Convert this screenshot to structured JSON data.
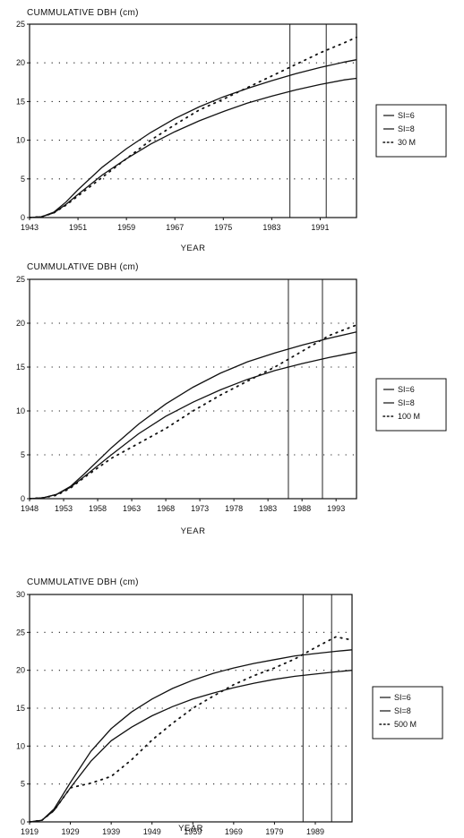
{
  "chart_data": [
    {
      "type": "line",
      "title": "CUMMULATIVE DBH (cm)",
      "xlabel": "YEAR",
      "ylabel": "",
      "xlim": [
        1943,
        1997
      ],
      "ylim": [
        0,
        25
      ],
      "xticks": [
        "1943",
        "1951",
        "1959",
        "1967",
        "1975",
        "1983",
        "1991"
      ],
      "yticks": [
        "0",
        "5",
        "10",
        "15",
        "20",
        "25"
      ],
      "grid": "dotted horizontal",
      "legend_position": "right",
      "vlines": [
        1986,
        1992
      ],
      "series": [
        {
          "name": "SI=6",
          "style": "solid",
          "x": [
            1943,
            1945,
            1947,
            1949,
            1951,
            1955,
            1959,
            1963,
            1967,
            1971,
            1975,
            1979,
            1983,
            1987,
            1991,
            1995,
            1997
          ],
          "y": [
            0,
            0.1,
            0.6,
            1.7,
            3.0,
            5.5,
            7.6,
            9.5,
            11.1,
            12.5,
            13.7,
            14.8,
            15.7,
            16.5,
            17.2,
            17.8,
            18.0
          ]
        },
        {
          "name": "SI=8",
          "style": "solid",
          "x": [
            1943,
            1945,
            1947,
            1949,
            1951,
            1955,
            1959,
            1963,
            1967,
            1971,
            1975,
            1979,
            1983,
            1987,
            1991,
            1995,
            1997
          ],
          "y": [
            0,
            0.1,
            0.7,
            2.0,
            3.6,
            6.5,
            8.9,
            11.0,
            12.8,
            14.3,
            15.6,
            16.7,
            17.7,
            18.6,
            19.4,
            20.1,
            20.4
          ]
        },
        {
          "name": "30 M",
          "style": "dotted",
          "x": [
            1943,
            1945,
            1947,
            1949,
            1951,
            1955,
            1959,
            1963,
            1967,
            1971,
            1975,
            1979,
            1983,
            1987,
            1991,
            1995,
            1997
          ],
          "y": [
            0,
            0.1,
            0.6,
            1.6,
            2.8,
            5.2,
            7.6,
            10.0,
            12.0,
            13.9,
            15.3,
            16.8,
            18.3,
            19.8,
            21.3,
            22.6,
            23.3
          ]
        }
      ]
    },
    {
      "type": "line",
      "title": "CUMMULATIVE DBH (cm)",
      "xlabel": "YEAR",
      "ylabel": "",
      "xlim": [
        1948,
        1996
      ],
      "ylim": [
        0,
        25
      ],
      "xticks": [
        "1948",
        "1953",
        "1958",
        "1963",
        "1968",
        "1973",
        "1978",
        "1983",
        "1988",
        "1993"
      ],
      "yticks": [
        "0",
        "5",
        "10",
        "15",
        "20",
        "25"
      ],
      "grid": "dotted horizontal",
      "legend_position": "right",
      "vlines": [
        1986,
        1991
      ],
      "series": [
        {
          "name": "SI=6",
          "style": "solid",
          "x": [
            1948,
            1950,
            1952,
            1954,
            1956,
            1960,
            1964,
            1968,
            1972,
            1976,
            1980,
            1984,
            1988,
            1992,
            1996
          ],
          "y": [
            0,
            0.1,
            0.5,
            1.3,
            2.5,
            5.0,
            7.4,
            9.4,
            11.0,
            12.4,
            13.6,
            14.6,
            15.4,
            16.1,
            16.7
          ]
        },
        {
          "name": "SI=8",
          "style": "solid",
          "x": [
            1948,
            1950,
            1952,
            1954,
            1956,
            1960,
            1964,
            1968,
            1972,
            1976,
            1980,
            1984,
            1988,
            1992,
            1996
          ],
          "y": [
            0,
            0.1,
            0.5,
            1.4,
            2.8,
            5.8,
            8.5,
            10.8,
            12.7,
            14.3,
            15.6,
            16.6,
            17.5,
            18.3,
            19.0
          ]
        },
        {
          "name": "100 M",
          "style": "dotted",
          "x": [
            1948,
            1950,
            1952,
            1954,
            1956,
            1960,
            1964,
            1968,
            1972,
            1976,
            1980,
            1984,
            1988,
            1992,
            1996
          ],
          "y": [
            0,
            0.1,
            0.4,
            1.2,
            2.4,
            4.6,
            6.3,
            8.0,
            10.0,
            11.8,
            13.4,
            15.0,
            16.8,
            18.6,
            19.8
          ]
        }
      ]
    },
    {
      "type": "line",
      "title": "CUMMULATIVE DBH (cm)",
      "xlabel": "YEAR",
      "ylabel": "",
      "xlim": [
        1919,
        1998
      ],
      "ylim": [
        0,
        30
      ],
      "xticks": [
        "1919",
        "1929",
        "1939",
        "1949",
        "1959",
        "1969",
        "1979",
        "1989"
      ],
      "yticks": [
        "0",
        "5",
        "10",
        "15",
        "20",
        "25",
        "30"
      ],
      "grid": "dotted horizontal",
      "legend_position": "right",
      "vlines": [
        1986,
        1993
      ],
      "series": [
        {
          "name": "SI=6",
          "style": "solid",
          "x": [
            1919,
            1922,
            1925,
            1929,
            1934,
            1939,
            1944,
            1949,
            1954,
            1959,
            1964,
            1969,
            1974,
            1979,
            1984,
            1989,
            1994,
            1998
          ],
          "y": [
            0,
            0.2,
            1.5,
            4.5,
            8.0,
            10.7,
            12.5,
            14.0,
            15.2,
            16.2,
            17.0,
            17.7,
            18.3,
            18.8,
            19.2,
            19.5,
            19.8,
            20.0
          ]
        },
        {
          "name": "SI=8",
          "style": "solid",
          "x": [
            1919,
            1922,
            1925,
            1929,
            1934,
            1939,
            1944,
            1949,
            1954,
            1959,
            1964,
            1969,
            1974,
            1979,
            1984,
            1989,
            1994,
            1998
          ],
          "y": [
            0,
            0.2,
            1.7,
            5.2,
            9.3,
            12.3,
            14.5,
            16.2,
            17.6,
            18.7,
            19.6,
            20.3,
            20.9,
            21.4,
            21.9,
            22.2,
            22.5,
            22.7
          ]
        },
        {
          "name": "500 M",
          "style": "dotted",
          "x": [
            1919,
            1922,
            1925,
            1929,
            1934,
            1939,
            1944,
            1949,
            1954,
            1959,
            1964,
            1969,
            1974,
            1979,
            1984,
            1989,
            1994,
            1998
          ],
          "y": [
            0,
            0.2,
            1.5,
            4.5,
            5.1,
            6.0,
            8.2,
            10.8,
            13.0,
            15.0,
            16.6,
            18.1,
            19.3,
            20.3,
            21.5,
            23.0,
            24.4,
            24.0
          ]
        }
      ]
    }
  ]
}
